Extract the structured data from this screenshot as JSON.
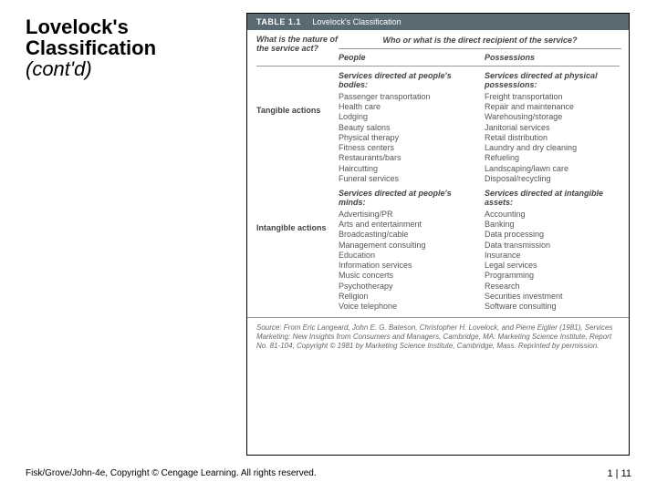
{
  "title": {
    "line1": "Lovelock's",
    "line2": "Classification",
    "line3": "(cont'd)"
  },
  "table": {
    "header_label": "TABLE 1.1",
    "header_title": "Lovelock's Classification",
    "q1": "What is the nature of the service act?",
    "q2": "Who or what is the direct recipient of the service?",
    "col_people": "People",
    "col_possessions": "Possessions",
    "row_tangible": "Tangible actions",
    "row_intangible": "Intangible actions",
    "cat_bodies": "Services directed at people's bodies:",
    "cat_physical": "Services directed at physical possessions:",
    "cat_minds": "Services directed at people's minds:",
    "cat_intangible": "Services directed at intangible assets:",
    "bodies": [
      "Passenger transportation",
      "Health care",
      "Lodging",
      "Beauty salons",
      "Physical therapy",
      "Fitness centers",
      "Restaurants/bars",
      "Haircutting",
      "Funeral services"
    ],
    "physical": [
      "Freight transportation",
      "Repair and maintenance",
      "Warehousing/storage",
      "Janitorial services",
      "Retail distribution",
      "Laundry and dry cleaning",
      "Refueling",
      "Landscaping/lawn care",
      "Disposal/recycling"
    ],
    "minds": [
      "Advertising/PR",
      "Arts and entertainment",
      "Broadcasting/cable",
      "Management consulting",
      "Education",
      "Information services",
      "Music concerts",
      "Psychotherapy",
      "Religion",
      "Voice telephone"
    ],
    "intangible": [
      "Accounting",
      "Banking",
      "Data processing",
      "Data transmission",
      "Insurance",
      "Legal services",
      "Programming",
      "Research",
      "Securities investment",
      "Software consulting"
    ],
    "source": "Source: From Eric Langeard, John E. G. Bateson, Christopher H. Lovelock, and Pierre Eiglier (1981), Services Marketing: New Insights from Consumers and Managers, Cambridge, MA: Marketing Science Institute, Report No. 81-104, Copyright © 1981 by Marketing Science Institute, Cambridge, Mass. Reprinted by permission."
  },
  "footer": {
    "left": "Fisk/Grove/John-4e, Copyright © Cengage Learning. All rights reserved.",
    "right": "1 | 11"
  }
}
